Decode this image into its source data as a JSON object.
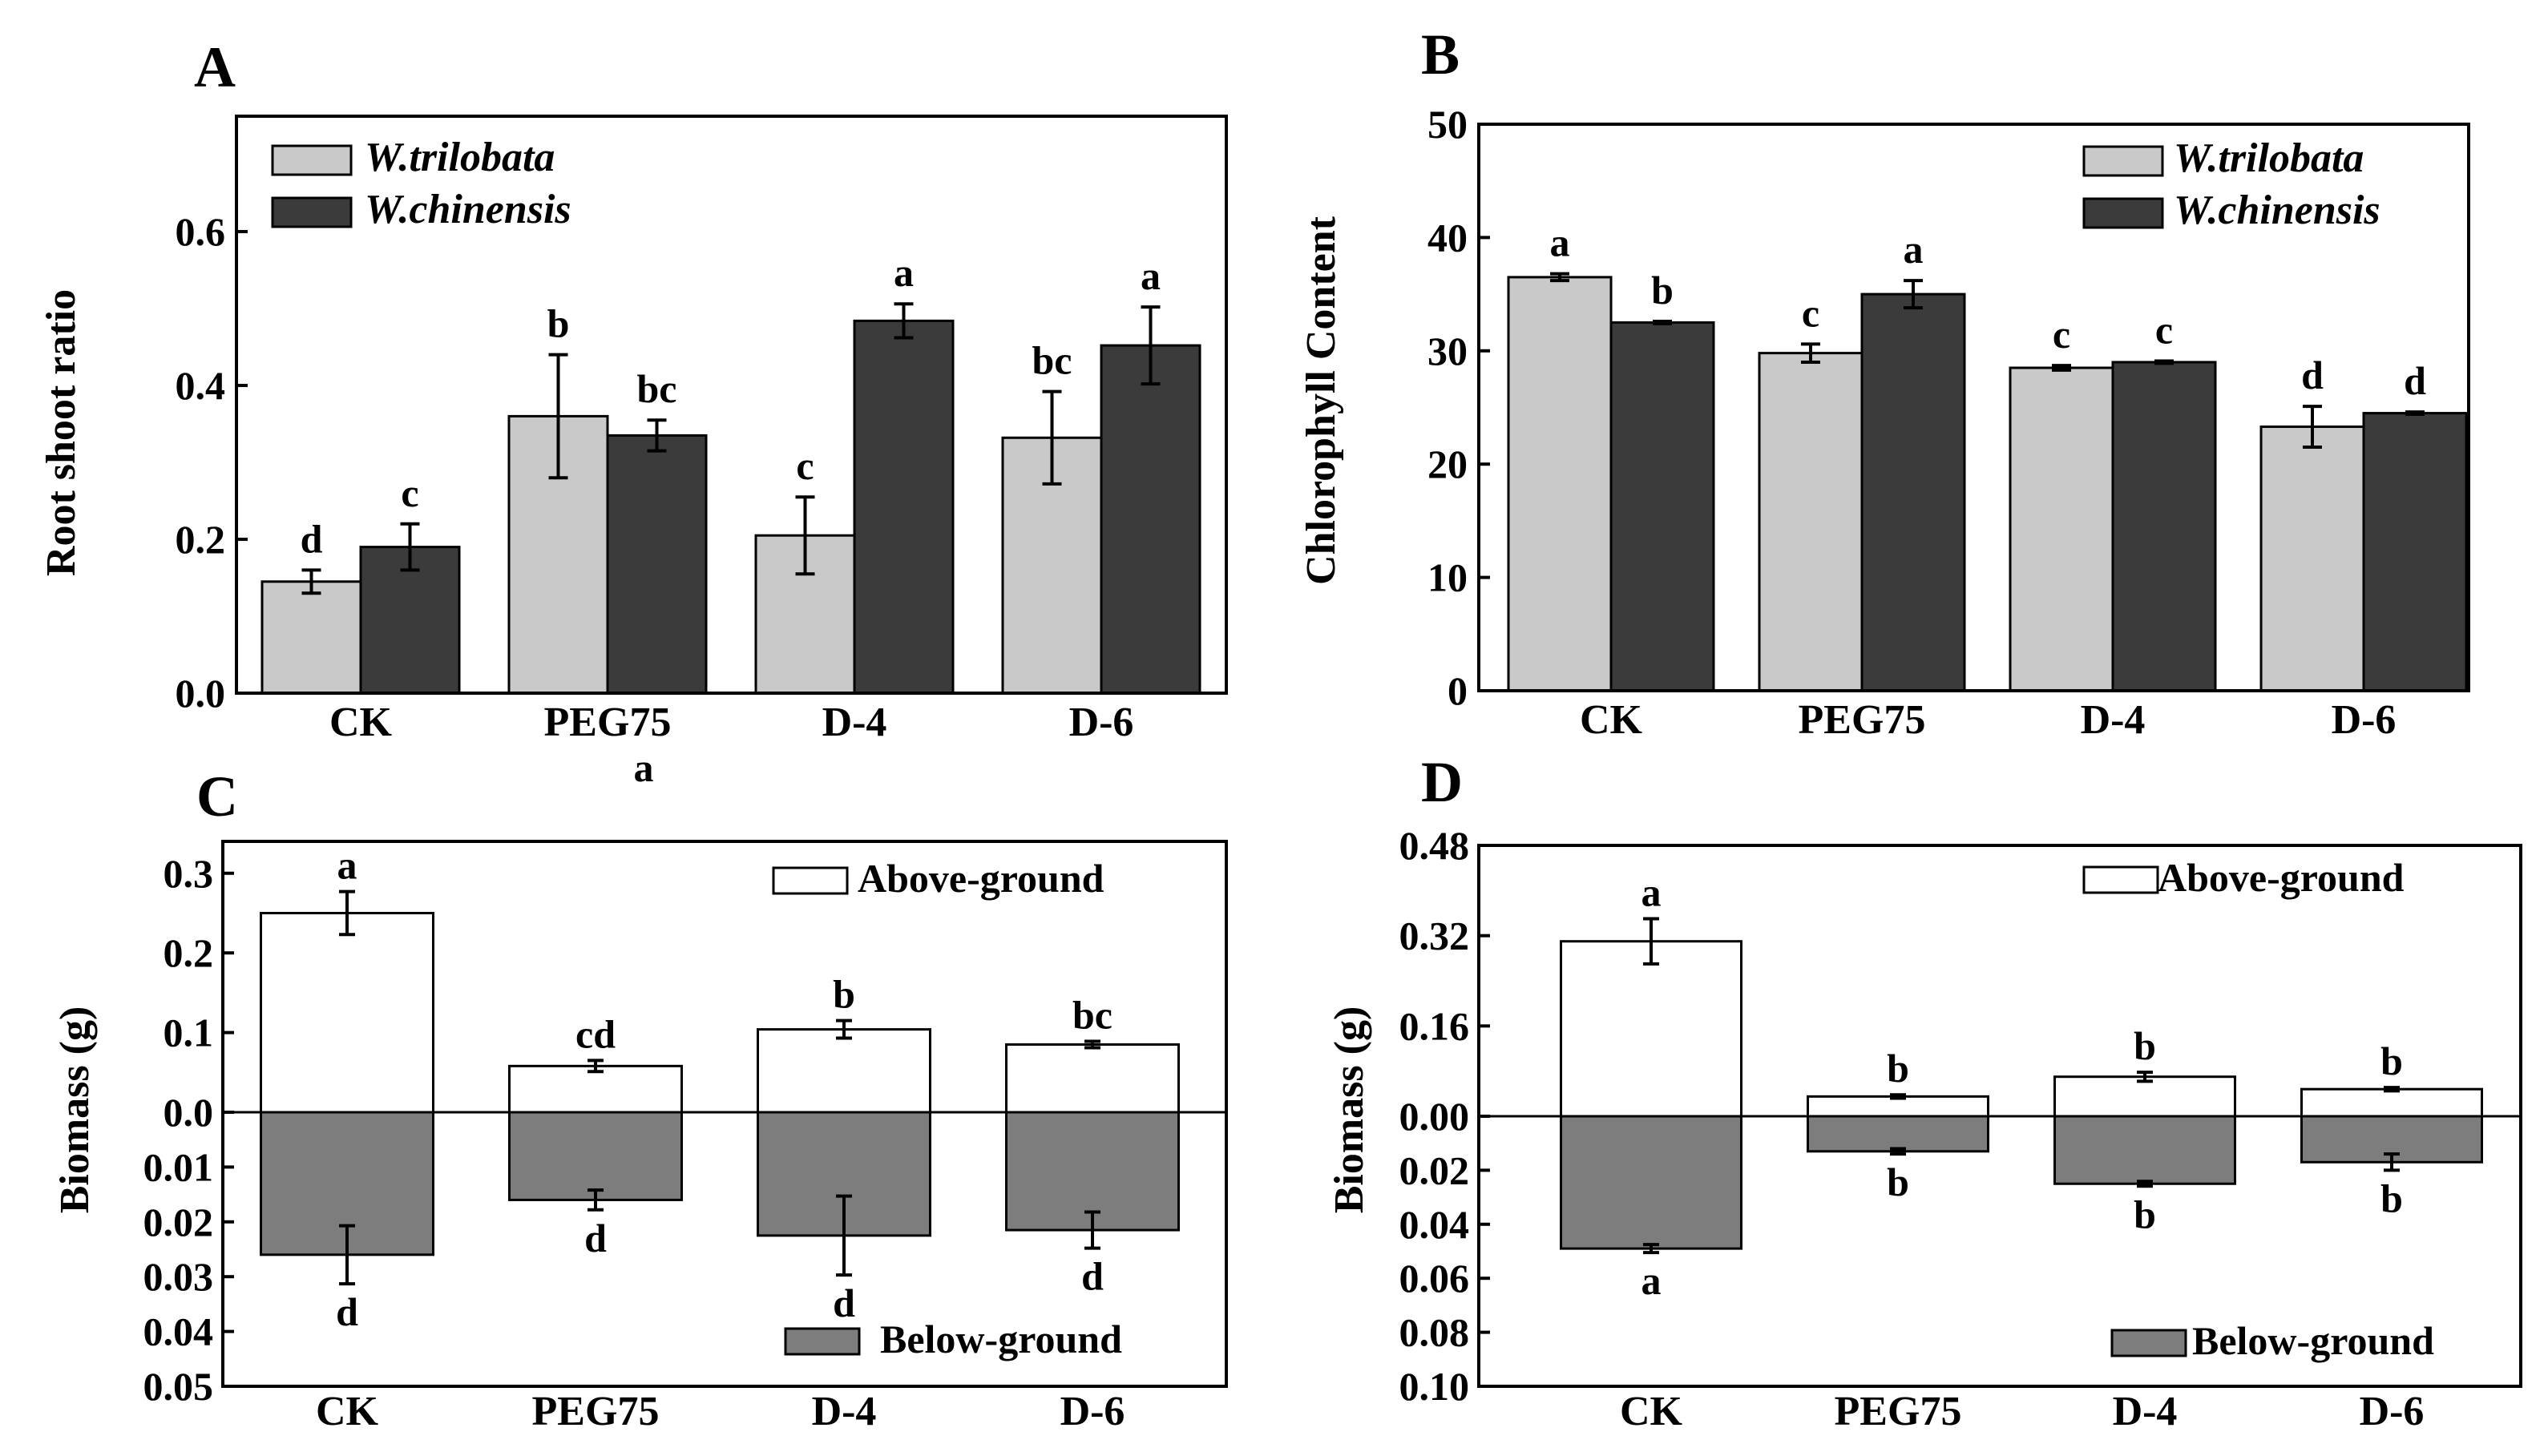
{
  "colors": {
    "trilobata": "#c9c9c9",
    "chinensis": "#3b3b3b",
    "above": "#ffffff",
    "below": "#7d7d7d"
  },
  "stray_label": "a",
  "chart_data": [
    {
      "panel": "A",
      "type": "bar",
      "ylabel": "Root shoot ratio",
      "categories": [
        "CK",
        "PEG75",
        "D-4",
        "D-6"
      ],
      "ylim": [
        0,
        0.75
      ],
      "yticks": [
        "0.0",
        "0.2",
        "0.4",
        "0.6"
      ],
      "legend_position": "top-left",
      "series": [
        {
          "name": "W.trilobata",
          "values": [
            0.145,
            0.36,
            0.205,
            0.332
          ],
          "errors": [
            0.015,
            0.08,
            0.05,
            0.06
          ],
          "letters": [
            "d",
            "b",
            "c",
            "bc"
          ]
        },
        {
          "name": "W.chinensis",
          "values": [
            0.19,
            0.335,
            0.484,
            0.452
          ],
          "errors": [
            0.03,
            0.02,
            0.022,
            0.05
          ],
          "letters": [
            "c",
            "bc",
            "a",
            "a"
          ]
        }
      ]
    },
    {
      "panel": "B",
      "type": "bar",
      "ylabel": "Chlorophyll Content",
      "categories": [
        "CK",
        "PEG75",
        "D-4",
        "D-6"
      ],
      "ylim": [
        0,
        50
      ],
      "yticks": [
        "0",
        "10",
        "20",
        "30",
        "40",
        "50"
      ],
      "legend_position": "top-right",
      "series": [
        {
          "name": "W.trilobata",
          "values": [
            36.5,
            29.8,
            28.5,
            23.3
          ],
          "errors": [
            0.3,
            0.8,
            0.2,
            1.8
          ],
          "letters": [
            "a",
            "c",
            "c",
            "d"
          ]
        },
        {
          "name": "W.chinensis",
          "values": [
            32.5,
            35,
            29,
            24.5
          ],
          "errors": [
            0.1,
            1.2,
            0.1,
            0.1
          ],
          "letters": [
            "b",
            "a",
            "c",
            "d"
          ]
        }
      ]
    },
    {
      "panel": "C",
      "type": "bar",
      "ylabel": "Biomass (g)",
      "categories": [
        "CK",
        "PEG75",
        "D-4",
        "D-6"
      ],
      "ylim_above": [
        0,
        0.34
      ],
      "ylim_below": [
        0,
        0.05
      ],
      "yticks_above": [
        "0.0",
        "0.1",
        "0.2",
        "0.3"
      ],
      "yticks_below": [
        "0.01",
        "0.02",
        "0.03",
        "0.04",
        "0.05"
      ],
      "legend_position": "top-right / bottom-right",
      "series": [
        {
          "name": "Above-ground",
          "values": [
            0.25,
            0.058,
            0.104,
            0.085
          ],
          "errors": [
            0.027,
            0.007,
            0.011,
            0.004
          ],
          "letters": [
            "a",
            "cd",
            "b",
            "bc"
          ]
        },
        {
          "name": "Below-ground",
          "values": [
            0.026,
            0.016,
            0.0225,
            0.0215
          ],
          "errors": [
            0.0053,
            0.0018,
            0.0072,
            0.0033
          ],
          "letters": [
            "d",
            "d",
            "d",
            "d"
          ]
        }
      ]
    },
    {
      "panel": "D",
      "type": "bar",
      "ylabel": "Biomass (g)",
      "categories": [
        "CK",
        "PEG75",
        "D-4",
        "D-6"
      ],
      "ylim_above": [
        0,
        0.48
      ],
      "ylim_below": [
        0,
        0.1
      ],
      "yticks_above": [
        "0.00",
        "0.16",
        "0.32",
        "0.48"
      ],
      "yticks_below": [
        "0.02",
        "0.04",
        "0.06",
        "0.08",
        "0.10"
      ],
      "legend_position": "top-right / bottom-right",
      "series": [
        {
          "name": "Above-ground",
          "values": [
            0.31,
            0.035,
            0.07,
            0.048
          ],
          "errors": [
            0.04,
            0.003,
            0.008,
            0.003
          ],
          "letters": [
            "a",
            "b",
            "b",
            "b"
          ]
        },
        {
          "name": "Below-ground",
          "values": [
            0.049,
            0.013,
            0.025,
            0.017
          ],
          "errors": [
            0.0015,
            0.001,
            0.0009,
            0.003
          ],
          "letters": [
            "a",
            "b",
            "b",
            "b"
          ]
        }
      ]
    }
  ]
}
